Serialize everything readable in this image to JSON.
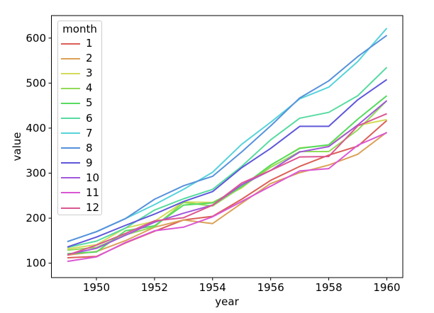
{
  "figure": {
    "background": "#ffffff",
    "spine_color": "#000000",
    "tick_color": "#000000",
    "legend_border_color": "#cccccc"
  },
  "chart_data": {
    "type": "line",
    "title": "",
    "xlabel": "year",
    "ylabel": "value",
    "x": [
      1949,
      1950,
      1951,
      1952,
      1953,
      1954,
      1955,
      1956,
      1957,
      1958,
      1959,
      1960
    ],
    "series": [
      {
        "name": "1",
        "color": "#db5f57",
        "values": [
          112,
          115,
          145,
          171,
          196,
          204,
          242,
          284,
          315,
          340,
          360,
          417
        ]
      },
      {
        "name": "2",
        "color": "#dba157",
        "values": [
          118,
          126,
          150,
          180,
          196,
          188,
          233,
          277,
          301,
          318,
          342,
          391
        ]
      },
      {
        "name": "3",
        "color": "#d3db57",
        "values": [
          132,
          141,
          178,
          193,
          236,
          235,
          267,
          317,
          356,
          362,
          406,
          419
        ]
      },
      {
        "name": "4",
        "color": "#91db57",
        "values": [
          129,
          135,
          163,
          181,
          235,
          227,
          269,
          313,
          348,
          348,
          396,
          461
        ]
      },
      {
        "name": "5",
        "color": "#57db5f",
        "values": [
          121,
          125,
          172,
          183,
          229,
          234,
          270,
          318,
          355,
          363,
          420,
          472
        ]
      },
      {
        "name": "6",
        "color": "#57dba1",
        "values": [
          135,
          149,
          178,
          218,
          243,
          264,
          315,
          374,
          422,
          435,
          472,
          535
        ]
      },
      {
        "name": "7",
        "color": "#57d3db",
        "values": [
          148,
          170,
          199,
          230,
          264,
          302,
          364,
          413,
          465,
          491,
          548,
          622
        ]
      },
      {
        "name": "8",
        "color": "#5791db",
        "values": [
          148,
          170,
          199,
          242,
          272,
          293,
          347,
          405,
          467,
          505,
          559,
          606
        ]
      },
      {
        "name": "9",
        "color": "#5f57db",
        "values": [
          136,
          158,
          184,
          209,
          237,
          259,
          312,
          355,
          404,
          404,
          463,
          508
        ]
      },
      {
        "name": "10",
        "color": "#a157db",
        "values": [
          119,
          133,
          162,
          191,
          211,
          229,
          274,
          306,
          347,
          359,
          407,
          461
        ]
      },
      {
        "name": "11",
        "color": "#db57d3",
        "values": [
          104,
          114,
          146,
          172,
          180,
          203,
          237,
          271,
          305,
          310,
          362,
          390
        ]
      },
      {
        "name": "12",
        "color": "#db5791",
        "values": [
          118,
          140,
          166,
          194,
          201,
          229,
          278,
          306,
          336,
          337,
          405,
          432
        ]
      }
    ],
    "xlim": [
      1948.45,
      1960.55
    ],
    "ylim": [
      68,
      650
    ],
    "xticks": [
      1950,
      1952,
      1954,
      1956,
      1958,
      1960
    ],
    "yticks": [
      100,
      200,
      300,
      400,
      500,
      600
    ],
    "grid": false,
    "legend": {
      "title": "month",
      "position": "upper left"
    }
  }
}
